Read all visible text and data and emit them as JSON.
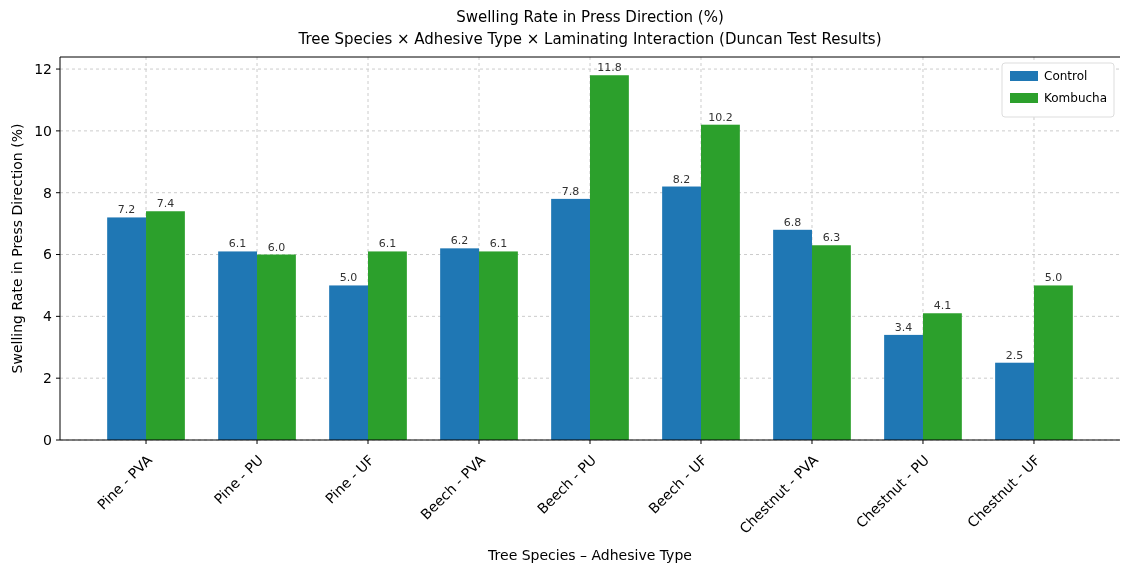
{
  "chart_data": {
    "type": "bar",
    "title": "Swelling Rate in Press Direction (%)",
    "subtitle": "Tree Species × Adhesive Type × Laminating Interaction (Duncan Test Results)",
    "xlabel": "Tree Species – Adhesive Type",
    "ylabel": "Swelling Rate in Press Direction (%)",
    "categories": [
      "Pine - PVA",
      "Pine - PU",
      "Pine - UF",
      "Beech - PVA",
      "Beech - PU",
      "Beech - UF",
      "Chestnut - PVA",
      "Chestnut - PU",
      "Chestnut - UF"
    ],
    "series": [
      {
        "name": "Control",
        "color": "#1f77b4",
        "values": [
          7.2,
          6.1,
          5.0,
          6.2,
          7.8,
          8.2,
          6.8,
          3.4,
          2.5
        ],
        "value_labels": [
          "7.2",
          "6.1",
          "5.0",
          "6.2",
          "7.8",
          "8.2",
          "6.8",
          "3.4",
          "2.5"
        ]
      },
      {
        "name": "Kombucha",
        "color": "#2ca02c",
        "values": [
          7.4,
          6.0,
          6.1,
          6.1,
          11.8,
          10.2,
          6.3,
          4.1,
          5.0
        ],
        "value_labels": [
          "7.4",
          "6.0",
          "6.1",
          "6.1",
          "11.8",
          "10.2",
          "6.3",
          "4.1",
          "5.0"
        ]
      }
    ],
    "ylim": [
      0,
      12.39
    ],
    "yticks": [
      0,
      2,
      4,
      6,
      8,
      10,
      12
    ],
    "grid": true,
    "legend": "top right"
  }
}
